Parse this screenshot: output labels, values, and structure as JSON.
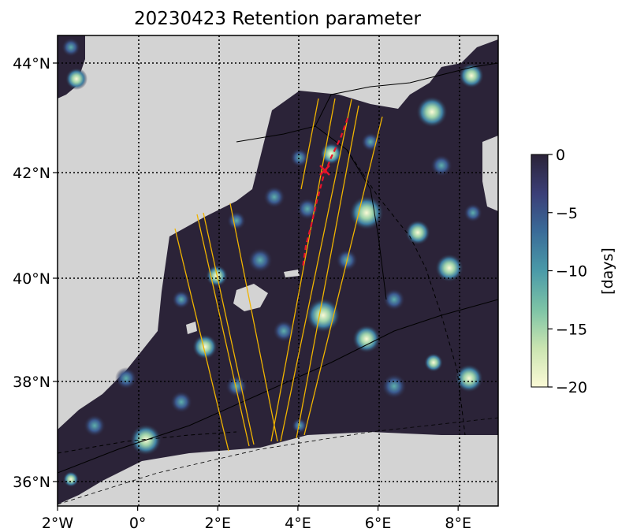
{
  "title": "20230423 Retention parameter",
  "map": {
    "lon_range": [
      -2,
      9
    ],
    "lat_range": [
      35.5,
      44.5
    ],
    "x_ticks": [
      {
        "value": -2,
        "label": "2°W"
      },
      {
        "value": 0,
        "label": "0°"
      },
      {
        "value": 2,
        "label": "2°E"
      },
      {
        "value": 4,
        "label": "4°E"
      },
      {
        "value": 6,
        "label": "6°E"
      },
      {
        "value": 8,
        "label": "8°E"
      }
    ],
    "y_ticks": [
      {
        "value": 36,
        "label": "36°N"
      },
      {
        "value": 38,
        "label": "38°N"
      },
      {
        "value": 40,
        "label": "40°N"
      },
      {
        "value": 42,
        "label": "42°N"
      },
      {
        "value": 44,
        "label": "44°N"
      }
    ],
    "grid": true,
    "land_color": "#d3d3d3",
    "sea_base_color": "#2b2338",
    "track_color": "#f0b400",
    "trajectory_color": "#e8132b"
  },
  "colorbar": {
    "label": "[days]",
    "range": [
      0,
      -20
    ],
    "ticks": [
      {
        "value": 0,
        "label": "0"
      },
      {
        "value": -5,
        "label": "−5"
      },
      {
        "value": -10,
        "label": "−10"
      },
      {
        "value": -15,
        "label": "−15"
      },
      {
        "value": -20,
        "label": "−20"
      }
    ],
    "colormap": [
      "#2b2338",
      "#3b3f78",
      "#3a6b98",
      "#4a9aa8",
      "#7ec4a6",
      "#c9e4b0",
      "#fbfad6"
    ]
  }
}
